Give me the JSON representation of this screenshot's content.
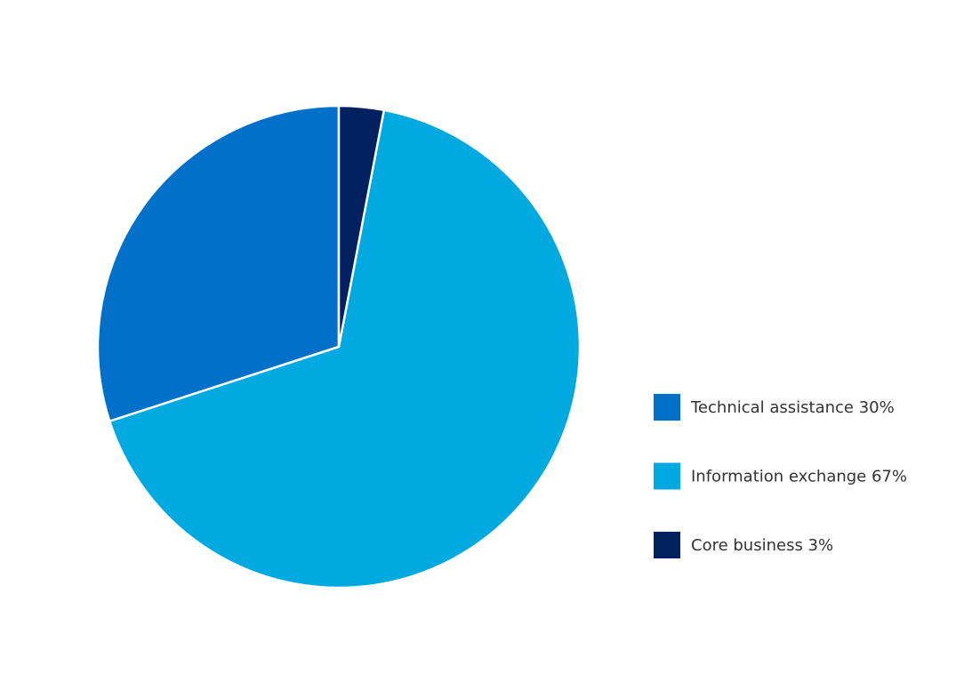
{
  "chart_data": {
    "type": "pie",
    "categories": [
      "Technical assistance 30%",
      "Information exchange 67%",
      "Core business 3%"
    ],
    "values": [
      30,
      67,
      3
    ],
    "colors": [
      "#0070c9",
      "#00a9e0",
      "#002060"
    ],
    "legend": "right"
  }
}
